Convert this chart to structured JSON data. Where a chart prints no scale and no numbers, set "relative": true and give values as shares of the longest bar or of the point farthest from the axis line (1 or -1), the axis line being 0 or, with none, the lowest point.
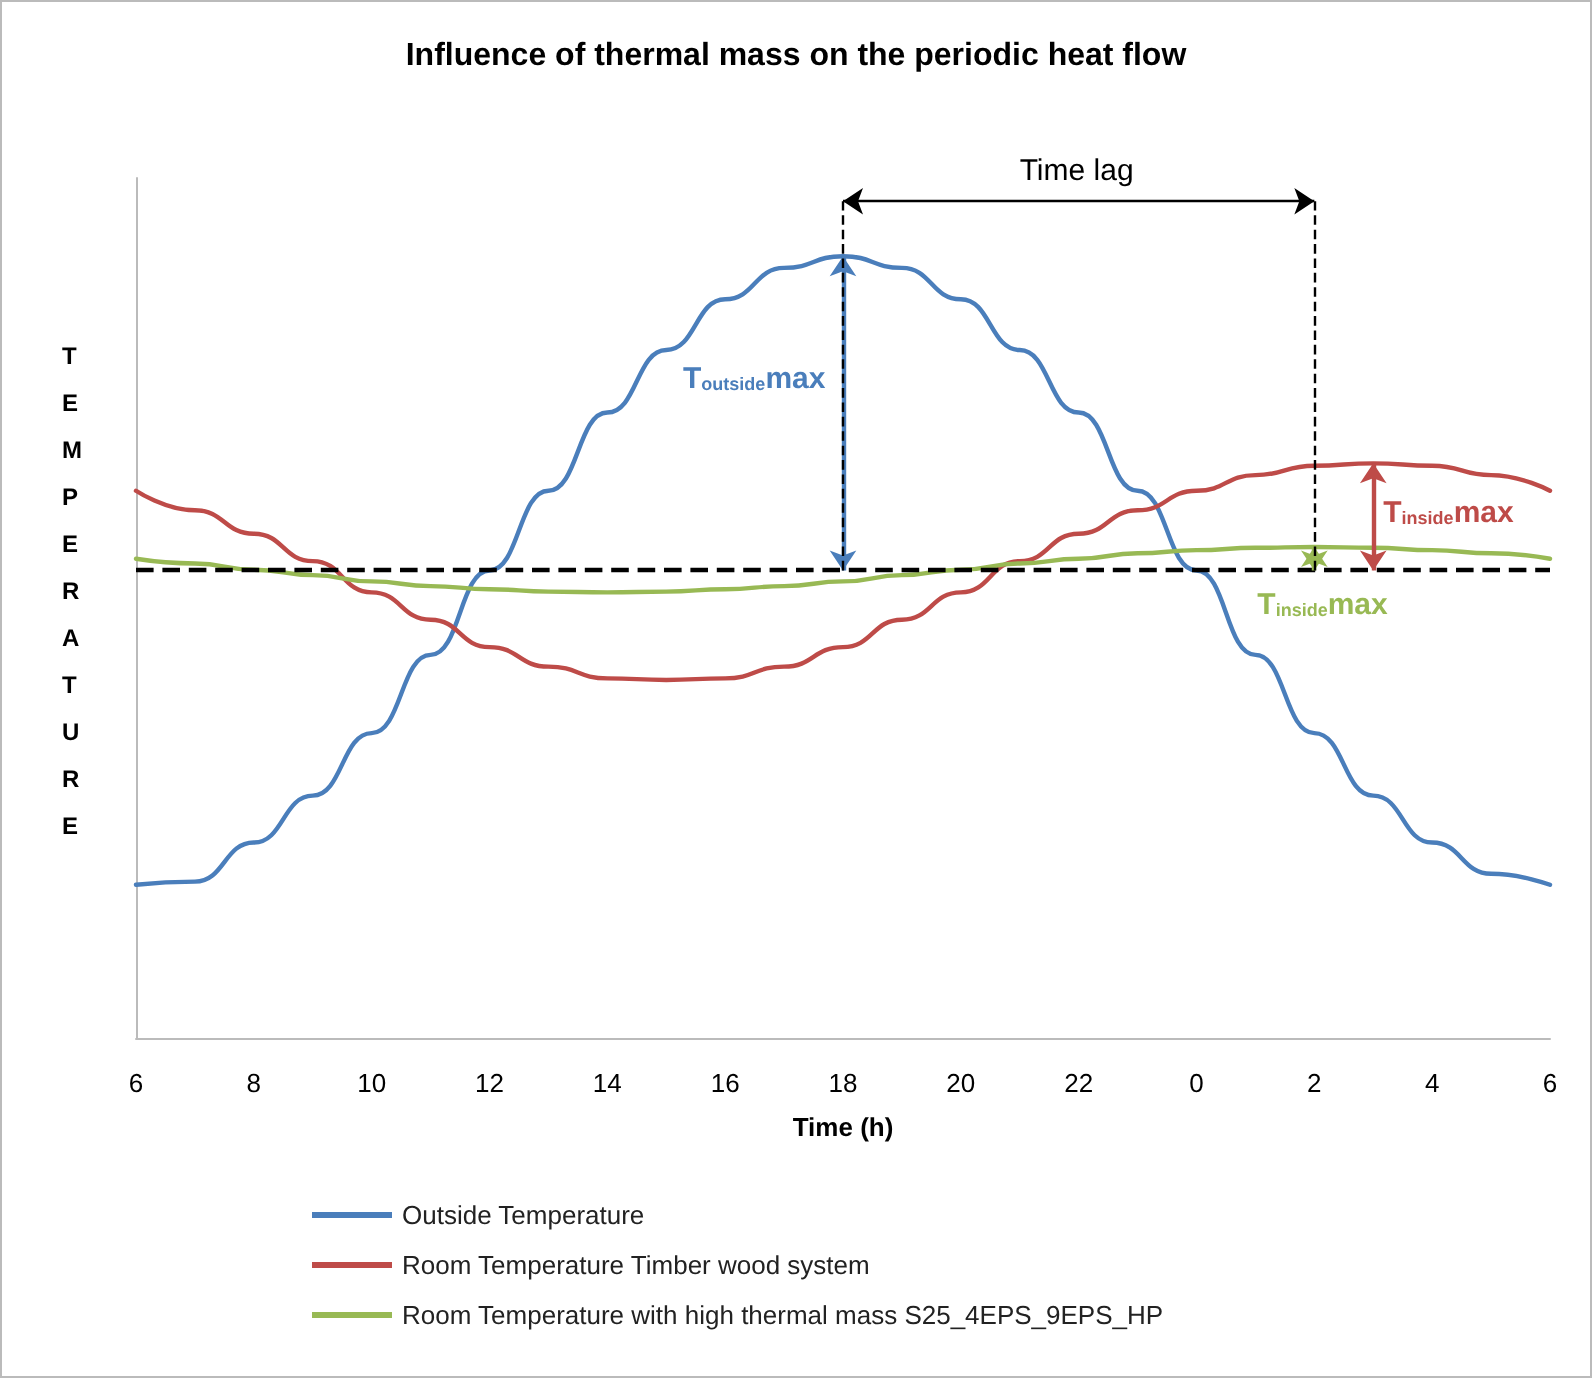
{
  "chart_data": {
    "type": "line",
    "title": "Influence of thermal mass on the periodic heat flow",
    "xlabel": "Time (h)",
    "ylabel": "TEMPERATURE",
    "relative": true,
    "categories": [
      "6",
      null,
      "8",
      null,
      "10",
      null,
      "12",
      null,
      "14",
      null,
      "16",
      null,
      "18",
      null,
      "20",
      null,
      "22",
      null,
      "0",
      null,
      "2",
      null,
      "4",
      null,
      "6"
    ],
    "series": [
      {
        "name": "Outside Temperature",
        "color": "#4a7ebb",
        "values": [
          0.196,
          0.2,
          0.25,
          0.31,
          0.39,
          0.49,
          0.598,
          0.7,
          0.8,
          0.88,
          0.945,
          0.985,
          1.0,
          0.985,
          0.945,
          0.88,
          0.8,
          0.7,
          0.598,
          0.49,
          0.39,
          0.31,
          0.25,
          0.21,
          0.196
        ]
      },
      {
        "name": "Room Temperature Timber wood system",
        "color": "#be4b48",
        "values": [
          0.7,
          0.675,
          0.645,
          0.61,
          0.57,
          0.535,
          0.5,
          0.475,
          0.46,
          0.458,
          0.46,
          0.475,
          0.5,
          0.535,
          0.57,
          0.61,
          0.645,
          0.675,
          0.7,
          0.72,
          0.732,
          0.735,
          0.732,
          0.72,
          0.7
        ]
      },
      {
        "name": "Room Temperature with high thermal mass S25_4EPS_9EPS_HP",
        "color": "#98b954",
        "values": [
          0.613,
          0.607,
          0.599,
          0.592,
          0.584,
          0.578,
          0.574,
          0.571,
          0.57,
          0.571,
          0.574,
          0.578,
          0.584,
          0.592,
          0.599,
          0.607,
          0.613,
          0.62,
          0.624,
          0.627,
          0.628,
          0.627,
          0.624,
          0.62,
          0.613
        ]
      }
    ],
    "ref_lines": [
      {
        "axis": "y",
        "value": 0.598,
        "color": "#000000",
        "line_style": "dashed"
      }
    ],
    "annotations": [
      "Time lag",
      "T$_{outside}$max",
      "T$_{inside}$max",
      "T$_{inside}$max"
    ],
    "legend": "bottom",
    "marker": "none",
    "line_style": "solid",
    "grid": false
  }
}
